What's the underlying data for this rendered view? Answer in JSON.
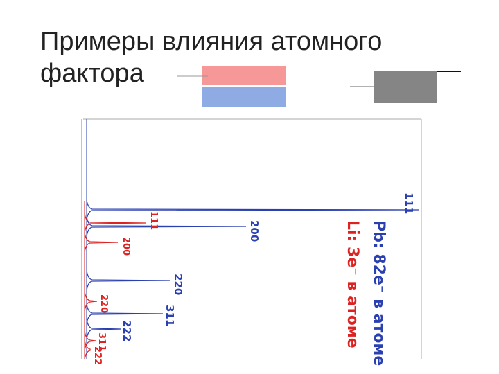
{
  "title": [
    "Примеры влияния атомного",
    "фактора"
  ],
  "pb": {
    "label": "Pb: 82e⁻ в атоме",
    "peaks": [
      "111",
      "200",
      "220",
      "311",
      "222"
    ]
  },
  "li": {
    "label": "Li: 3e⁻ в атоме",
    "peaks": [
      "111",
      "200",
      "220",
      "311",
      "222"
    ]
  }
}
